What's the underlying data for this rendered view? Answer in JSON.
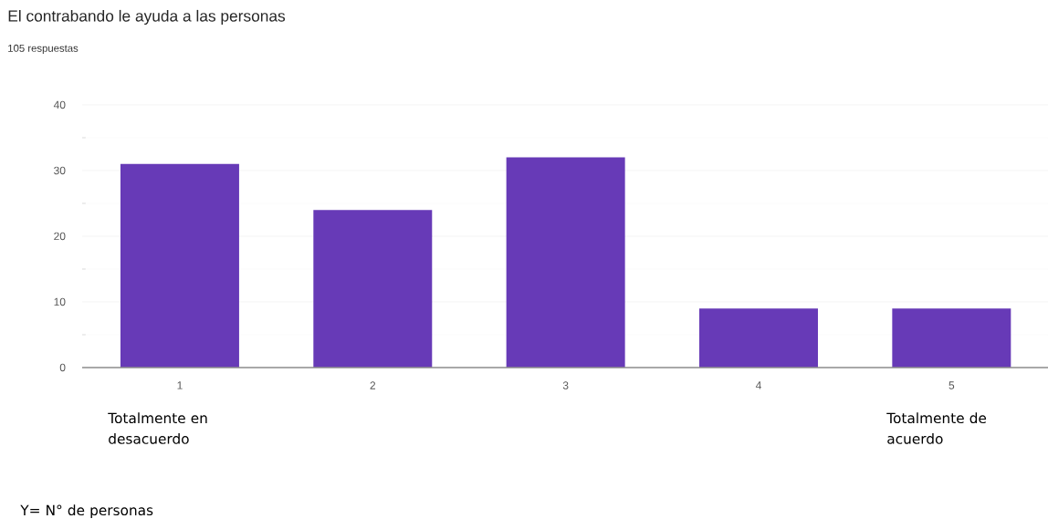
{
  "chart_data": {
    "type": "bar",
    "title": "El contrabando le ayuda a las personas",
    "subtitle": "105 respuestas",
    "categories": [
      "1",
      "2",
      "3",
      "4",
      "5"
    ],
    "values": [
      31,
      24,
      32,
      9,
      9
    ],
    "color": "#673ab7",
    "ylim": [
      0,
      40
    ],
    "yticks": [
      0,
      10,
      20,
      30,
      40
    ],
    "grid": "y",
    "annotations": [
      "Totalmente en desacuerdo",
      "Totalmente de acuerdo",
      "Y= N° de personas"
    ]
  }
}
